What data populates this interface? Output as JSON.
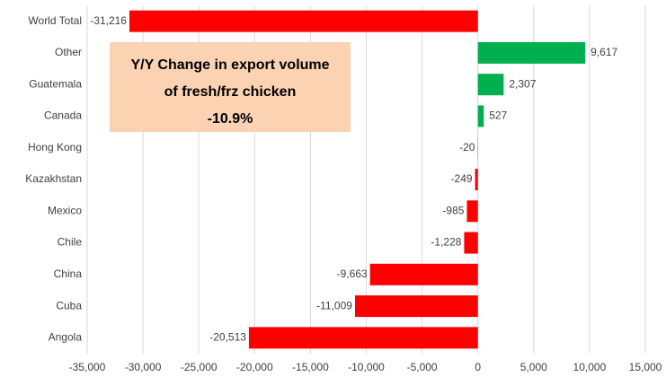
{
  "chart_data": {
    "type": "bar",
    "orientation": "horizontal",
    "categories": [
      "World Total",
      "Other",
      "Guatemala",
      "Canada",
      "Hong Kong",
      "Kazakhstan",
      "Mexico",
      "Chile",
      "China",
      "Cuba",
      "Angola"
    ],
    "values": [
      -31216,
      9617,
      2307,
      527,
      -20,
      -249,
      -985,
      -1228,
      -9663,
      -11009,
      -20513
    ],
    "value_labels": [
      "-31,216",
      "9,617",
      "2,307",
      "527",
      "-20",
      "-249",
      "-985",
      "-1,228",
      "-9,663",
      "-11,009",
      "-20,513"
    ],
    "colors": [
      "#ff0000",
      "#00b050",
      "#00b050",
      "#00b050",
      "#ff0000",
      "#ff0000",
      "#ff0000",
      "#ff0000",
      "#ff0000",
      "#ff0000",
      "#ff0000"
    ],
    "xlim": [
      -35000,
      15000
    ],
    "xticks": [
      {
        "value": -35000,
        "label": "-35,000"
      },
      {
        "value": -30000,
        "label": "-30,000"
      },
      {
        "value": -25000,
        "label": "-25,000"
      },
      {
        "value": -20000,
        "label": "-20,000"
      },
      {
        "value": -15000,
        "label": "-15,000"
      },
      {
        "value": -10000,
        "label": "-10,000"
      },
      {
        "value": -5000,
        "label": "-5,000"
      },
      0,
      {
        "value": 5000,
        "label": "5,000"
      },
      {
        "value": 10000,
        "label": "10,000"
      },
      {
        "value": 15000,
        "label": "15,000"
      }
    ],
    "grid": true,
    "annotation": {
      "lines": [
        "Y/Y Change in export volume",
        "of fresh/frz chicken",
        "-10.9%"
      ],
      "color": "#fbd3b3"
    }
  }
}
